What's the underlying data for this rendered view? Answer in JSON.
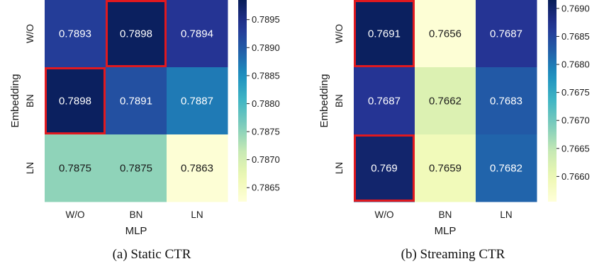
{
  "chart_data": [
    {
      "type": "heatmap",
      "caption": "(a) Static CTR",
      "xlabel": "MLP",
      "ylabel": "Embedding",
      "x_categories": [
        "W/O",
        "BN",
        "LN"
      ],
      "y_categories": [
        "W/O",
        "BN",
        "LN"
      ],
      "values": [
        [
          "0.7893",
          "0.7898",
          "0.7894"
        ],
        [
          "0.7898",
          "0.7891",
          "0.7887"
        ],
        [
          "0.7875",
          "0.7875",
          "0.7863"
        ]
      ],
      "highlighted_cells": [
        [
          0,
          1
        ],
        [
          1,
          0
        ]
      ],
      "colormap": "YlGnBu",
      "colorbar": {
        "min": 0.78625,
        "max": 0.78985,
        "ticks": [
          "0.7865",
          "0.7870",
          "0.7875",
          "0.7880",
          "0.7885",
          "0.7890",
          "0.7895"
        ]
      },
      "highlight_color": "#e0191f"
    },
    {
      "type": "heatmap",
      "caption": "(b) Streaming CTR",
      "xlabel": "MLP",
      "ylabel": "Embedding",
      "x_categories": [
        "W/O",
        "BN",
        "LN"
      ],
      "y_categories": [
        "W/O",
        "BN",
        "LN"
      ],
      "values": [
        [
          "0.7691",
          "0.7656",
          "0.7687"
        ],
        [
          "0.7687",
          "0.7662",
          "0.7683"
        ],
        [
          "0.769",
          "0.7659",
          "0.7682"
        ]
      ],
      "highlighted_cells": [
        [
          0,
          0
        ],
        [
          2,
          0
        ]
      ],
      "colormap": "YlGnBu",
      "colorbar": {
        "min": 0.76555,
        "max": 0.76915,
        "ticks": [
          "0.7660",
          "0.7665",
          "0.7670",
          "0.7675",
          "0.7680",
          "0.7685",
          "0.7690"
        ]
      },
      "highlight_color": "#e0191f"
    }
  ]
}
